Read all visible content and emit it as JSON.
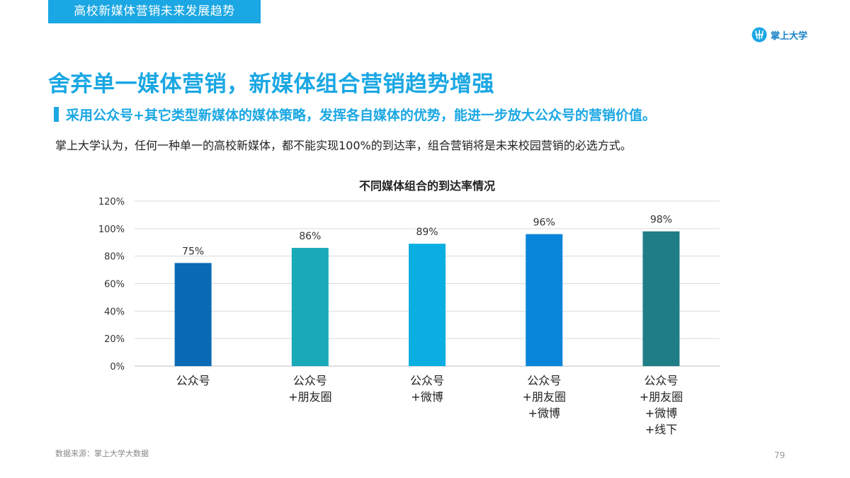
{
  "header": {
    "section_tag": "高校新媒体营销未来发展趋势",
    "brand_name": "掌上大学",
    "brand_logo_icon": "brand-logo-icon"
  },
  "headline": "舍弃单一媒体营销，新媒体组合营销趋势增强",
  "subheadline": "采用公众号+其它类型新媒体的媒体策略，发挥各自媒体的优势，能进一步放大公众号的营销价值。",
  "intro_text": "掌上大学认为，任何一种单一的高校新媒体，都不能实现100%的到达率，组合营销将是未来校园营销的必选方式。",
  "chart_data": {
    "type": "bar",
    "title": "不同媒体组合的到达率情况",
    "xlabel": "",
    "ylabel": "",
    "categories": [
      [
        "公众号"
      ],
      [
        "公众号",
        "+朋友圈"
      ],
      [
        "公众号",
        "+微博"
      ],
      [
        "公众号",
        "+朋友圈",
        "+微博"
      ],
      [
        "公众号",
        "+朋友圈",
        "+微博",
        "+线下"
      ]
    ],
    "values": [
      75,
      86,
      89,
      96,
      98
    ],
    "value_labels": [
      "75%",
      "86%",
      "89%",
      "96%",
      "98%"
    ],
    "bar_colors": [
      "#0a6ab4",
      "#19a9b8",
      "#0aaee0",
      "#0986d9",
      "#1f7d86"
    ],
    "ylim": [
      0,
      120
    ],
    "yticks": [
      0,
      20,
      40,
      60,
      80,
      100,
      120
    ],
    "ytick_labels": [
      "0%",
      "20%",
      "40%",
      "60%",
      "80%",
      "100%",
      "120%"
    ],
    "grid": true,
    "legend": "none"
  },
  "footer": {
    "source": "数据来源：掌上大学大数据",
    "page_number": "79"
  },
  "colors": {
    "accent": "#1aa7e3",
    "brand": "#1a82c8",
    "grid": "#d9d9d9",
    "axis": "#bfbfbf",
    "text": "#333333"
  }
}
